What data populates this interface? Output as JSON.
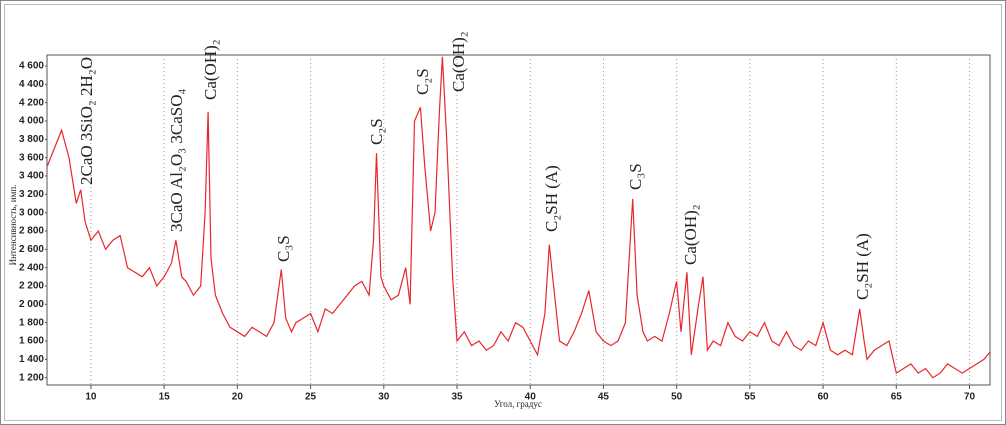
{
  "chart_data": {
    "type": "line",
    "y_label": "Интенсивность, имп.",
    "x_label": "Угол, градус",
    "annotations": [
      "2CaO 3SiO₂ 2H₂O",
      "3CaO Al₂O₃ 3CaSO₄",
      "Ca(OH)₂",
      "C₃S",
      "C₂S",
      "C₂S",
      "Ca(OH)₂",
      "C₂SH (A)",
      "C₃S",
      "Ca(OH)₂",
      "C₂SH (A)"
    ],
    "xlim": [
      7,
      71.4
    ],
    "ylim": [
      1120,
      4720
    ],
    "xticks": [
      10,
      15,
      20,
      25,
      30,
      35,
      40,
      45,
      50,
      55,
      60,
      65,
      70
    ],
    "yticks": [
      {
        "value": 1200,
        "label": "1 200"
      },
      {
        "value": 1400,
        "label": "1 400"
      },
      {
        "value": 1600,
        "label": "1 600"
      },
      {
        "value": 1800,
        "label": "1 800"
      },
      {
        "value": 2000,
        "label": "2 000"
      },
      {
        "value": 2200,
        "label": "2 200"
      },
      {
        "value": 2400,
        "label": "2 400"
      },
      {
        "value": 2600,
        "label": "2 600"
      },
      {
        "value": 2800,
        "label": "2 800"
      },
      {
        "value": 3000,
        "label": "3 000"
      },
      {
        "value": 3200,
        "label": "3 200"
      },
      {
        "value": 3400,
        "label": "3 400"
      },
      {
        "value": 3600,
        "label": "3 600"
      },
      {
        "value": 3800,
        "label": "3 800"
      },
      {
        "value": 4000,
        "label": "4 000"
      },
      {
        "value": 4200,
        "label": "4 200"
      },
      {
        "value": 4400,
        "label": "4 400"
      },
      {
        "value": 4600,
        "label": "4 600"
      }
    ],
    "grid": true,
    "series": [
      {
        "color": "#e8262b",
        "x": [
          7.0,
          7.5,
          8.0,
          8.5,
          9.0,
          9.3,
          9.6,
          10.0,
          10.5,
          11.0,
          11.5,
          12.0,
          12.5,
          13.0,
          13.5,
          14.0,
          14.5,
          15.0,
          15.5,
          15.8,
          16.2,
          16.5,
          17.0,
          17.5,
          17.8,
          18.0,
          18.2,
          18.5,
          19.0,
          19.5,
          20.0,
          20.5,
          21.0,
          21.5,
          22.0,
          22.5,
          23.0,
          23.3,
          23.7,
          24.0,
          24.5,
          25.0,
          25.5,
          26.0,
          26.5,
          27.0,
          27.5,
          28.0,
          28.5,
          29.0,
          29.3,
          29.5,
          29.8,
          30.0,
          30.5,
          31.0,
          31.5,
          31.8,
          32.1,
          32.5,
          32.8,
          33.2,
          33.5,
          33.8,
          34.0,
          34.3,
          34.7,
          35.0,
          35.5,
          36.0,
          36.5,
          37.0,
          37.5,
          38.0,
          38.5,
          39.0,
          39.5,
          40.0,
          40.5,
          41.0,
          41.3,
          41.6,
          42.0,
          42.5,
          43.0,
          43.5,
          44.0,
          44.5,
          45.0,
          45.5,
          46.0,
          46.5,
          47.0,
          47.3,
          47.7,
          48.0,
          48.5,
          49.0,
          49.5,
          50.0,
          50.3,
          50.7,
          51.0,
          51.5,
          51.8,
          52.1,
          52.5,
          53.0,
          53.5,
          54.0,
          54.5,
          55.0,
          55.5,
          56.0,
          56.5,
          57.0,
          57.5,
          58.0,
          58.5,
          59.0,
          59.5,
          60.0,
          60.5,
          61.0,
          61.5,
          62.0,
          62.5,
          62.8,
          63.0,
          63.5,
          64.0,
          64.5,
          65.0,
          65.5,
          66.0,
          66.5,
          67.0,
          67.5,
          68.0,
          68.5,
          69.0,
          69.5,
          70.0,
          70.5,
          71.0,
          71.4
        ],
        "values": [
          3500,
          3700,
          3900,
          3600,
          3100,
          3250,
          2900,
          2700,
          2800,
          2600,
          2700,
          2750,
          2400,
          2350,
          2300,
          2400,
          2200,
          2300,
          2450,
          2700,
          2300,
          2250,
          2100,
          2200,
          3000,
          4100,
          2500,
          2100,
          1900,
          1750,
          1700,
          1650,
          1750,
          1700,
          1650,
          1800,
          2380,
          1850,
          1700,
          1800,
          1850,
          1900,
          1700,
          1950,
          1900,
          2000,
          2100,
          2200,
          2250,
          2100,
          2700,
          3650,
          2300,
          2200,
          2050,
          2100,
          2400,
          2000,
          4000,
          4150,
          3500,
          2800,
          3000,
          4100,
          4700,
          3800,
          2300,
          1600,
          1700,
          1550,
          1600,
          1500,
          1550,
          1700,
          1600,
          1800,
          1750,
          1600,
          1450,
          1900,
          2650,
          2200,
          1600,
          1550,
          1700,
          1900,
          2150,
          1700,
          1600,
          1550,
          1600,
          1800,
          3150,
          2100,
          1700,
          1600,
          1650,
          1600,
          1900,
          2250,
          1700,
          2350,
          1450,
          2000,
          2300,
          1500,
          1600,
          1550,
          1800,
          1650,
          1600,
          1700,
          1650,
          1800,
          1600,
          1550,
          1700,
          1550,
          1500,
          1600,
          1550,
          1800,
          1500,
          1450,
          1500,
          1450,
          1950,
          1600,
          1400,
          1500,
          1550,
          1600,
          1250,
          1300,
          1350,
          1250,
          1300,
          1200,
          1250,
          1350,
          1300,
          1250,
          1300,
          1350,
          1400,
          1480
        ]
      }
    ]
  }
}
